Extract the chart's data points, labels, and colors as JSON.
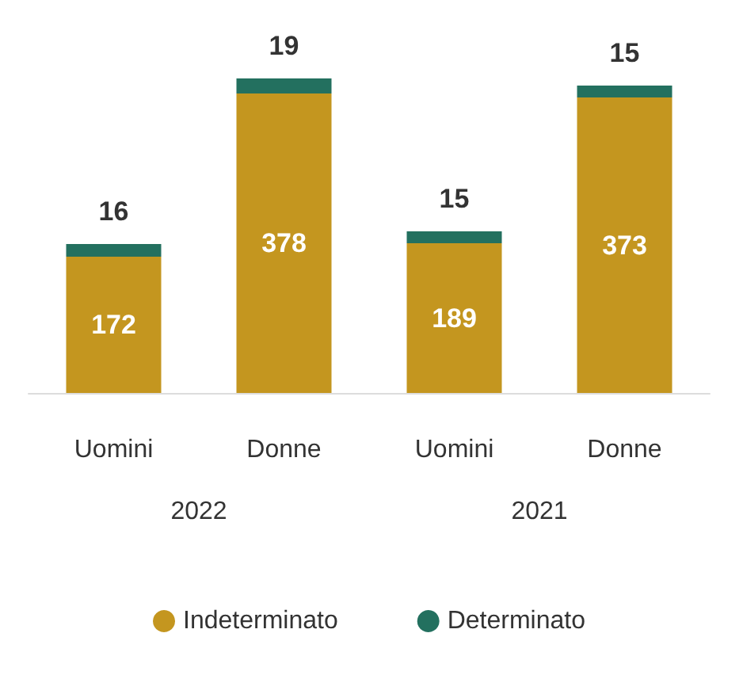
{
  "chart_data": {
    "type": "bar",
    "stacked": true,
    "data_labels": true,
    "categories": [
      "Uomini",
      "Donne",
      "Uomini",
      "Donne"
    ],
    "series": [
      {
        "name": "Indeterminato",
        "color": "#c4961f",
        "values": [
          172,
          378,
          189,
          373
        ]
      },
      {
        "name": "Determinato",
        "color": "#23705f",
        "values": [
          16,
          19,
          15,
          15
        ]
      }
    ],
    "annotations": [
      "2022",
      "2021"
    ],
    "legend": "bottom"
  }
}
